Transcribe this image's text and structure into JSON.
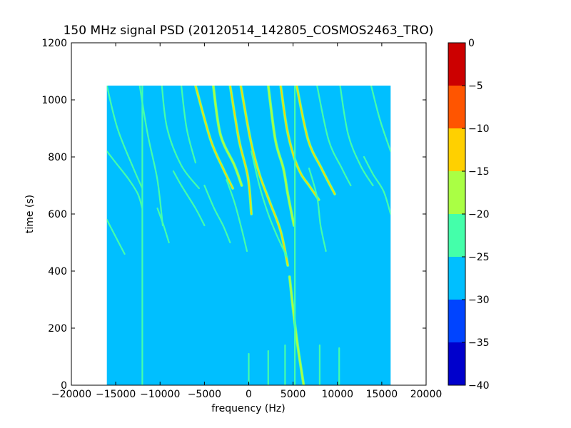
{
  "chart_data": {
    "type": "heatmap",
    "title": "150 MHz signal PSD (20120514_142805_COSMOS2463_TRO)",
    "xlabel": "frequency (Hz)",
    "ylabel": "time (s)",
    "xlim": [
      -20000,
      20000
    ],
    "ylim": [
      0,
      1200
    ],
    "xticks": [
      -20000,
      -15000,
      -10000,
      -5000,
      0,
      5000,
      10000,
      15000,
      20000
    ],
    "xtick_labels": [
      "−20000",
      "−15000",
      "−10000",
      "−5000",
      "0",
      "5000",
      "10000",
      "15000",
      "20000"
    ],
    "yticks": [
      0,
      200,
      400,
      600,
      800,
      1000,
      1200
    ],
    "ytick_labels": [
      "0",
      "200",
      "400",
      "600",
      "800",
      "1000",
      "1200"
    ],
    "data_extent": {
      "x": [
        -16000,
        16000
      ],
      "y": [
        0,
        1050
      ]
    },
    "grid": false,
    "background_level": -27.5,
    "colorbar": {
      "min": -40,
      "max": 0,
      "ticks": [
        0,
        -5,
        -10,
        -15,
        -20,
        -25,
        -30,
        -35,
        -40
      ],
      "tick_labels": [
        "0",
        "−5",
        "−10",
        "−15",
        "−20",
        "−25",
        "−30",
        "−35",
        "−40"
      ],
      "levels": [
        {
          "range": [
            -40,
            -35
          ],
          "color": "#0000cc"
        },
        {
          "range": [
            -35,
            -30
          ],
          "color": "#0044ff"
        },
        {
          "range": [
            -30,
            -25
          ],
          "color": "#00bfff"
        },
        {
          "range": [
            -25,
            -20
          ],
          "color": "#44ffaa"
        },
        {
          "range": [
            -20,
            -15
          ],
          "color": "#aaff44"
        },
        {
          "range": [
            -15,
            -10
          ],
          "color": "#ffd000"
        },
        {
          "range": [
            -10,
            -5
          ],
          "color": "#ff5500"
        },
        {
          "range": [
            -5,
            0
          ],
          "color": "#cc0000"
        }
      ]
    },
    "tracks": [
      {
        "x": [
          -16000,
          -14800,
          -13000,
          -12000
        ],
        "y": [
          1050,
          900,
          760,
          690
        ],
        "level": -22.5
      },
      {
        "x": [
          -16000,
          -15000,
          -13500,
          -12500,
          -12000
        ],
        "y": [
          820,
          780,
          720,
          670,
          620
        ],
        "level": -22.5
      },
      {
        "x": [
          -16000,
          -15000,
          -14000
        ],
        "y": [
          580,
          520,
          460
        ],
        "level": -22.5
      },
      {
        "x": [
          -12300,
          -11400,
          -10300,
          -9700
        ],
        "y": [
          1050,
          880,
          720,
          560
        ],
        "level": -22.5
      },
      {
        "x": [
          -10300,
          -9600,
          -9000
        ],
        "y": [
          620,
          560,
          500
        ],
        "level": -22.5
      },
      {
        "x": [
          -9800,
          -9200,
          -7600,
          -5600
        ],
        "y": [
          1050,
          900,
          770,
          690
        ],
        "level": -22.5
      },
      {
        "x": [
          -7600,
          -7000,
          -6000
        ],
        "y": [
          1050,
          900,
          780
        ],
        "level": -22.5
      },
      {
        "x": [
          -8500,
          -7600,
          -6000,
          -5000
        ],
        "y": [
          750,
          700,
          620,
          560
        ],
        "level": -22.5
      },
      {
        "x": [
          -6000,
          -4300,
          -2900,
          -1800
        ],
        "y": [
          1050,
          860,
          760,
          690
        ],
        "level": -12.5
      },
      {
        "x": [
          -4000,
          -3200,
          -1600,
          -800
        ],
        "y": [
          1050,
          880,
          770,
          700
        ],
        "level": -17.5
      },
      {
        "x": [
          -5000,
          -3900,
          -2900,
          -2100
        ],
        "y": [
          700,
          620,
          560,
          500
        ],
        "level": -22.5
      },
      {
        "x": [
          -2100,
          -1100,
          -100,
          300
        ],
        "y": [
          1050,
          860,
          730,
          600
        ],
        "level": -12.5
      },
      {
        "x": [
          -2500,
          -1600,
          -900,
          -200
        ],
        "y": [
          720,
          640,
          560,
          470
        ],
        "level": -22.5
      },
      {
        "x": [
          -900,
          200,
          1200,
          2400,
          3600,
          4400
        ],
        "y": [
          1050,
          860,
          740,
          640,
          540,
          420
        ],
        "level": -12.5
      },
      {
        "x": [
          300,
          1200,
          2200,
          3100,
          4300
        ],
        "y": [
          820,
          700,
          600,
          530,
          450
        ],
        "level": -22.5
      },
      {
        "x": [
          2200,
          3000,
          3900,
          4400,
          5100
        ],
        "y": [
          1050,
          860,
          760,
          670,
          560
        ],
        "level": -17.5
      },
      {
        "x": [
          3600,
          4300,
          5100,
          5900,
          6800,
          7900
        ],
        "y": [
          1050,
          900,
          800,
          740,
          700,
          650
        ],
        "level": -12.5
      },
      {
        "x": [
          5400,
          6700,
          8200,
          9700
        ],
        "y": [
          1050,
          860,
          760,
          670
        ],
        "level": -12.5
      },
      {
        "x": [
          7700,
          9000,
          10500,
          11500
        ],
        "y": [
          1050,
          860,
          760,
          700
        ],
        "level": -22.5
      },
      {
        "x": [
          6800,
          7700,
          8100,
          8700
        ],
        "y": [
          760,
          660,
          560,
          470
        ],
        "level": -22.5
      },
      {
        "x": [
          4600,
          5100,
          5600,
          6200
        ],
        "y": [
          380,
          240,
          120,
          0
        ],
        "level": -17.5
      },
      {
        "x": [
          10300,
          11200,
          12600,
          14000
        ],
        "y": [
          1050,
          880,
          770,
          700
        ],
        "level": -22.5
      },
      {
        "x": [
          13800,
          14800,
          16000
        ],
        "y": [
          1050,
          930,
          820
        ],
        "level": -22.5
      },
      {
        "x": [
          13000,
          14000,
          15200,
          16000
        ],
        "y": [
          800,
          740,
          680,
          600
        ],
        "level": -22.5
      },
      {
        "x": [
          -12000,
          -12000
        ],
        "y": [
          1050,
          0
        ],
        "level": -22.5
      },
      {
        "x": [
          5200,
          5200
        ],
        "y": [
          1050,
          0
        ],
        "level": -22.5
      },
      {
        "x": [
          2200,
          2200
        ],
        "y": [
          120,
          0
        ],
        "level": -22.5
      },
      {
        "x": [
          0,
          0
        ],
        "y": [
          110,
          10
        ],
        "level": -22.5
      },
      {
        "x": [
          4100,
          4100
        ],
        "y": [
          140,
          0
        ],
        "level": -22.5
      },
      {
        "x": [
          8000,
          8000
        ],
        "y": [
          140,
          0
        ],
        "level": -22.5
      },
      {
        "x": [
          10200,
          10200
        ],
        "y": [
          130,
          0
        ],
        "level": -22.5
      }
    ]
  }
}
